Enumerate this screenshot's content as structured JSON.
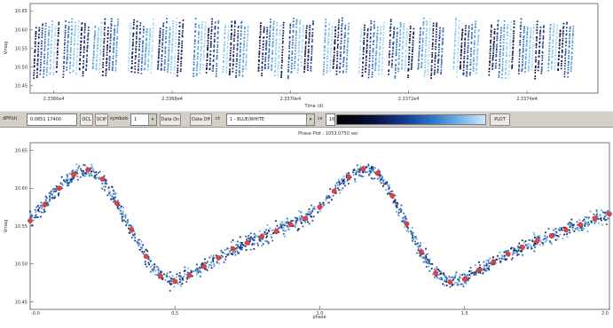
{
  "colors": {
    "top_points_dark": "#0b0b3a",
    "top_points_mid": "#1b3f8f",
    "top_points_light": "#7fc4ec",
    "phase_points": "#2c5fa8",
    "phase_binned": "#e8403a",
    "toolbar_bg": "#d4d0c8"
  },
  "top_plot": {
    "ytick_labels": [
      "10.45",
      "10.50",
      "10.55",
      "10.60",
      "10.65"
    ],
    "xtick_labels": [
      "2.3366e4",
      "2.3368e4",
      "2.3370e4",
      "2.3372e4",
      "2.3374e4"
    ],
    "xlabel": "Time (d)",
    "ylabel": "Vmag"
  },
  "toolbar": {
    "period_label": "dPP(d)",
    "period_value": "0.0851 17400",
    "btn1": "OCL",
    "btn2": "SCIP",
    "symbols_label": "symbols",
    "symbols_value": "1",
    "btn_data_on": "Data On",
    "btn_data_off": "Data Off",
    "ct_label": "ct",
    "ct_value": "1 - BLUE/WHITE",
    "cs_label": "cs",
    "cs_value": "16",
    "plot_button": "PLOT"
  },
  "bottom_plot": {
    "title": "Phase Plot : 1053.0750 sec",
    "ytick_labels": [
      "10.45",
      "10.50",
      "10.55",
      "10.60",
      "10.65"
    ],
    "xtick_labels": [
      "-0.0",
      "0.5",
      "1.0",
      "1.5",
      "2.0"
    ],
    "xlabel": "phase",
    "ylabel": "Vmag"
  },
  "chart_data": [
    {
      "type": "scatter",
      "title": "",
      "xlabel": "Time (d)",
      "ylabel": "Vmag",
      "xlim": [
        23365.6,
        23375.2
      ],
      "ylim": [
        10.67,
        10.43
      ],
      "x_tick_values": [
        23366,
        23368,
        23370,
        23372,
        23374
      ],
      "y_tick_values": [
        10.45,
        10.5,
        10.55,
        10.6,
        10.65
      ],
      "series": [
        {
          "group_centers_time": [
            23365.9,
            23366.4,
            23366.9,
            23367.5,
            23368.0,
            23368.6,
            23369.1,
            23369.7,
            23370.2,
            23370.8,
            23371.4,
            23371.9,
            23372.4,
            23373.0,
            23373.6,
            23374.1,
            23374.6
          ],
          "range": [
            10.47,
            10.63
          ]
        }
      ],
      "grid": false,
      "legend": "none"
    },
    {
      "type": "scatter",
      "title": "Phase Plot : 1053.0750 sec",
      "xlabel": "phase",
      "ylabel": "Vmag",
      "xlim": [
        0.0,
        2.0
      ],
      "ylim": [
        10.66,
        10.44
      ],
      "x_tick_values": [
        0.0,
        0.5,
        1.0,
        1.5,
        2.0
      ],
      "y_tick_values": [
        10.45,
        10.5,
        10.55,
        10.6,
        10.65
      ],
      "series": [
        {
          "name": "binned mean",
          "x": [
            0.0,
            0.05,
            0.1,
            0.15,
            0.2,
            0.25,
            0.3,
            0.35,
            0.4,
            0.45,
            0.5,
            0.55,
            0.6,
            0.65,
            0.7,
            0.75,
            0.8,
            0.85,
            0.9,
            0.95,
            1.0,
            1.05,
            1.1,
            1.15,
            1.2,
            1.25,
            1.3,
            1.35,
            1.4,
            1.45,
            1.5,
            1.55,
            1.6,
            1.65,
            1.7,
            1.75,
            1.8,
            1.85,
            1.9,
            1.95,
            2.0
          ],
          "y": [
            10.557,
            10.578,
            10.6,
            10.618,
            10.624,
            10.612,
            10.58,
            10.545,
            10.51,
            10.484,
            10.477,
            10.485,
            10.497,
            10.508,
            10.52,
            10.528,
            10.536,
            10.543,
            10.552,
            10.56,
            10.575,
            10.596,
            10.615,
            10.625,
            10.62,
            10.59,
            10.553,
            10.516,
            10.488,
            10.476,
            10.48,
            10.492,
            10.503,
            10.513,
            10.522,
            10.53,
            10.537,
            10.545,
            10.552,
            10.56,
            10.566
          ]
        }
      ],
      "scatter_spread": 0.012,
      "grid": false,
      "legend": "none"
    }
  ]
}
